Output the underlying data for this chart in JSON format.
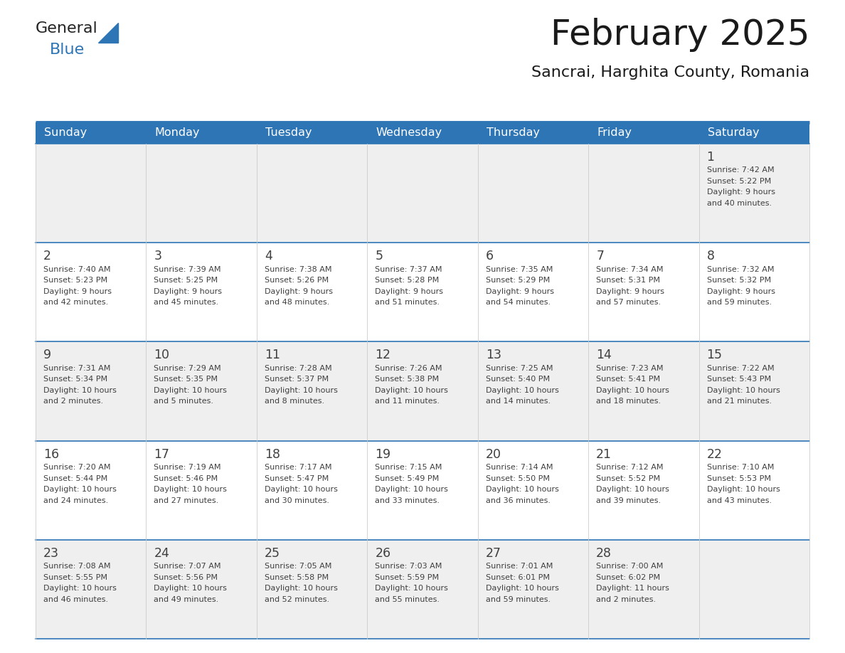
{
  "title": "February 2025",
  "subtitle": "Sancrai, Harghita County, Romania",
  "header_color": "#2E75B6",
  "header_text_color": "#FFFFFF",
  "row0_bg": "#EFEFEF",
  "row1_bg": "#FFFFFF",
  "row2_bg": "#EFEFEF",
  "row3_bg": "#FFFFFF",
  "row4_bg": "#EFEFEF",
  "line_color": "#2E75B6",
  "text_color": "#404040",
  "day_headers": [
    "Sunday",
    "Monday",
    "Tuesday",
    "Wednesday",
    "Thursday",
    "Friday",
    "Saturday"
  ],
  "days": [
    {
      "day": 1,
      "col": 6,
      "row": 0,
      "sunrise": "7:42 AM",
      "sunset": "5:22 PM",
      "daylight_h": "9 hours",
      "daylight_m": "and 40 minutes."
    },
    {
      "day": 2,
      "col": 0,
      "row": 1,
      "sunrise": "7:40 AM",
      "sunset": "5:23 PM",
      "daylight_h": "9 hours",
      "daylight_m": "and 42 minutes."
    },
    {
      "day": 3,
      "col": 1,
      "row": 1,
      "sunrise": "7:39 AM",
      "sunset": "5:25 PM",
      "daylight_h": "9 hours",
      "daylight_m": "and 45 minutes."
    },
    {
      "day": 4,
      "col": 2,
      "row": 1,
      "sunrise": "7:38 AM",
      "sunset": "5:26 PM",
      "daylight_h": "9 hours",
      "daylight_m": "and 48 minutes."
    },
    {
      "day": 5,
      "col": 3,
      "row": 1,
      "sunrise": "7:37 AM",
      "sunset": "5:28 PM",
      "daylight_h": "9 hours",
      "daylight_m": "and 51 minutes."
    },
    {
      "day": 6,
      "col": 4,
      "row": 1,
      "sunrise": "7:35 AM",
      "sunset": "5:29 PM",
      "daylight_h": "9 hours",
      "daylight_m": "and 54 minutes."
    },
    {
      "day": 7,
      "col": 5,
      "row": 1,
      "sunrise": "7:34 AM",
      "sunset": "5:31 PM",
      "daylight_h": "9 hours",
      "daylight_m": "and 57 minutes."
    },
    {
      "day": 8,
      "col": 6,
      "row": 1,
      "sunrise": "7:32 AM",
      "sunset": "5:32 PM",
      "daylight_h": "9 hours",
      "daylight_m": "and 59 minutes."
    },
    {
      "day": 9,
      "col": 0,
      "row": 2,
      "sunrise": "7:31 AM",
      "sunset": "5:34 PM",
      "daylight_h": "10 hours",
      "daylight_m": "and 2 minutes."
    },
    {
      "day": 10,
      "col": 1,
      "row": 2,
      "sunrise": "7:29 AM",
      "sunset": "5:35 PM",
      "daylight_h": "10 hours",
      "daylight_m": "and 5 minutes."
    },
    {
      "day": 11,
      "col": 2,
      "row": 2,
      "sunrise": "7:28 AM",
      "sunset": "5:37 PM",
      "daylight_h": "10 hours",
      "daylight_m": "and 8 minutes."
    },
    {
      "day": 12,
      "col": 3,
      "row": 2,
      "sunrise": "7:26 AM",
      "sunset": "5:38 PM",
      "daylight_h": "10 hours",
      "daylight_m": "and 11 minutes."
    },
    {
      "day": 13,
      "col": 4,
      "row": 2,
      "sunrise": "7:25 AM",
      "sunset": "5:40 PM",
      "daylight_h": "10 hours",
      "daylight_m": "and 14 minutes."
    },
    {
      "day": 14,
      "col": 5,
      "row": 2,
      "sunrise": "7:23 AM",
      "sunset": "5:41 PM",
      "daylight_h": "10 hours",
      "daylight_m": "and 18 minutes."
    },
    {
      "day": 15,
      "col": 6,
      "row": 2,
      "sunrise": "7:22 AM",
      "sunset": "5:43 PM",
      "daylight_h": "10 hours",
      "daylight_m": "and 21 minutes."
    },
    {
      "day": 16,
      "col": 0,
      "row": 3,
      "sunrise": "7:20 AM",
      "sunset": "5:44 PM",
      "daylight_h": "10 hours",
      "daylight_m": "and 24 minutes."
    },
    {
      "day": 17,
      "col": 1,
      "row": 3,
      "sunrise": "7:19 AM",
      "sunset": "5:46 PM",
      "daylight_h": "10 hours",
      "daylight_m": "and 27 minutes."
    },
    {
      "day": 18,
      "col": 2,
      "row": 3,
      "sunrise": "7:17 AM",
      "sunset": "5:47 PM",
      "daylight_h": "10 hours",
      "daylight_m": "and 30 minutes."
    },
    {
      "day": 19,
      "col": 3,
      "row": 3,
      "sunrise": "7:15 AM",
      "sunset": "5:49 PM",
      "daylight_h": "10 hours",
      "daylight_m": "and 33 minutes."
    },
    {
      "day": 20,
      "col": 4,
      "row": 3,
      "sunrise": "7:14 AM",
      "sunset": "5:50 PM",
      "daylight_h": "10 hours",
      "daylight_m": "and 36 minutes."
    },
    {
      "day": 21,
      "col": 5,
      "row": 3,
      "sunrise": "7:12 AM",
      "sunset": "5:52 PM",
      "daylight_h": "10 hours",
      "daylight_m": "and 39 minutes."
    },
    {
      "day": 22,
      "col": 6,
      "row": 3,
      "sunrise": "7:10 AM",
      "sunset": "5:53 PM",
      "daylight_h": "10 hours",
      "daylight_m": "and 43 minutes."
    },
    {
      "day": 23,
      "col": 0,
      "row": 4,
      "sunrise": "7:08 AM",
      "sunset": "5:55 PM",
      "daylight_h": "10 hours",
      "daylight_m": "and 46 minutes."
    },
    {
      "day": 24,
      "col": 1,
      "row": 4,
      "sunrise": "7:07 AM",
      "sunset": "5:56 PM",
      "daylight_h": "10 hours",
      "daylight_m": "and 49 minutes."
    },
    {
      "day": 25,
      "col": 2,
      "row": 4,
      "sunrise": "7:05 AM",
      "sunset": "5:58 PM",
      "daylight_h": "10 hours",
      "daylight_m": "and 52 minutes."
    },
    {
      "day": 26,
      "col": 3,
      "row": 4,
      "sunrise": "7:03 AM",
      "sunset": "5:59 PM",
      "daylight_h": "10 hours",
      "daylight_m": "and 55 minutes."
    },
    {
      "day": 27,
      "col": 4,
      "row": 4,
      "sunrise": "7:01 AM",
      "sunset": "6:01 PM",
      "daylight_h": "10 hours",
      "daylight_m": "and 59 minutes."
    },
    {
      "day": 28,
      "col": 5,
      "row": 4,
      "sunrise": "7:00 AM",
      "sunset": "6:02 PM",
      "daylight_h": "11 hours",
      "daylight_m": "and 2 minutes."
    }
  ],
  "num_rows": 5,
  "num_cols": 7
}
